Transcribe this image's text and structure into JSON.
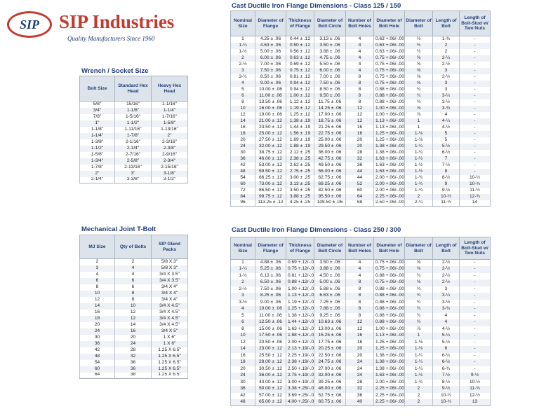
{
  "logo": {
    "mark": "SIP",
    "name": "SIP Industries",
    "tagline": "Quality Manufacturers Since 1960"
  },
  "wrench": {
    "title": "Wrench / Socket Size",
    "headers": [
      "Bolt Size",
      "Standard Hex Head",
      "Heavy Hex Head"
    ],
    "rows": [
      [
        "5/8\"",
        "15/16\"",
        "1-1/16\""
      ],
      [
        "3/4\"",
        "1-1/8\"",
        "1-1/4\""
      ],
      [
        "7/8\"",
        "1-5/16\"",
        "1-7/16\""
      ],
      [
        "1\"",
        "1-1/2\"",
        "1-5/8\""
      ],
      [
        "1-1/8\"",
        "1-11/16\"",
        "1-13/16\""
      ],
      [
        "1-1/4\"",
        "1-7/8\"",
        "2\""
      ],
      [
        "1-3/8\"",
        "2-1/16\"",
        "2-3/16\""
      ],
      [
        "1-1/2\"",
        "2-1/4\"",
        "2-3/8\""
      ],
      [
        "1-5/8\"",
        "2-7/16\"",
        "2-9/16\""
      ],
      [
        "1-3/4\"",
        "2-5/8\"",
        "2-3/4\""
      ],
      [
        "1-7/8\"",
        "2-13/16\"",
        "2-15/16\""
      ],
      [
        "2\"",
        "3\"",
        "3-1/8\""
      ],
      [
        "2-1/4\"",
        "3-3/8\"",
        "3-1/2\""
      ]
    ]
  },
  "mj": {
    "title": "Mechanical Joint T-Bolt",
    "headers": [
      "MJ Size",
      "Qty of Bolts",
      "SIP Gland Packs"
    ],
    "rows": [
      [
        "2",
        "2",
        "5/8 X 3\""
      ],
      [
        "3",
        "4",
        "5/8 X 3\""
      ],
      [
        "4",
        "4",
        "3/4 X 3.5\""
      ],
      [
        "6",
        "6",
        "3/4 X 3.5\""
      ],
      [
        "8",
        "6",
        "3/4 X 4\""
      ],
      [
        "10",
        "8",
        "3/4 X 4\""
      ],
      [
        "12",
        "8",
        "3/4 X 4\""
      ],
      [
        "14",
        "10",
        "3/4 X 4.5\""
      ],
      [
        "16",
        "12",
        "3/4 X 4.5\""
      ],
      [
        "18",
        "12",
        "3/4 X 4.5\""
      ],
      [
        "20",
        "14",
        "3/4 X 4.5\""
      ],
      [
        "24",
        "16",
        "3/4 X 5\""
      ],
      [
        "30",
        "20",
        "1 X 6\""
      ],
      [
        "36",
        "24",
        "1 X 6\""
      ],
      [
        "42",
        "28",
        "1.25 X 6.5\""
      ],
      [
        "48",
        "32",
        "1.25 X 6.5\""
      ],
      [
        "54",
        "36",
        "1.25 X 6.5\""
      ],
      [
        "60",
        "36",
        "1.25 X 6.5\""
      ],
      [
        "64",
        "38",
        "1.25 X 6.5\""
      ]
    ]
  },
  "class125": {
    "title": "Cast Ductile Iron Flange Dimensions - Class 125 / 150",
    "headers": [
      "Nominal Size",
      "Diameter of Flange",
      "Thickness of Flange",
      "Diameter of Bolt Circle",
      "Number of Bolt Holes",
      "Diameter of Bolt Hole",
      "Diameter of Bolt",
      "Length of Bolt",
      "Length of Bolt-Stud w/ Two Nuts"
    ],
    "rows": [
      [
        "1",
        "4.25 ± .06",
        "0.44 ± .12",
        "3.13 ± .06",
        "4",
        "0.63 +.06/-.00",
        "½",
        "1-¾",
        "-"
      ],
      [
        "1-¼",
        "4.63 ± .06",
        "0.50 ± .12",
        "3.50 ± .06",
        "4",
        "0.63 +.06/-.00",
        "½",
        "2",
        "-"
      ],
      [
        "1-½",
        "5.00 ± .06",
        "0.56 ± .12",
        "3.88 ± .06",
        "4",
        "0.63 +.06/-.00",
        "½",
        "2",
        "-"
      ],
      [
        "2",
        "6.00 ± .06",
        "0.63 ± .12",
        "4.75 ± .06",
        "4",
        "0.75 +.06/-.00",
        "⅝",
        "2-¼",
        "-"
      ],
      [
        "2-½",
        "7.00 ± .06",
        "0.69 ± .12",
        "5.50 ± .06",
        "4",
        "0.75 +.06/-.00",
        "⅝",
        "2-½",
        "-"
      ],
      [
        "3",
        "7.50 ± .06",
        "0.75 ± .12",
        "6.00 ± .06",
        "4",
        "0.75 +.06/-.00",
        "⅝",
        "3",
        "-"
      ],
      [
        "3-½",
        "8.50 ± .06",
        "0.81 ± .12",
        "7.00 ± .06",
        "8",
        "0.75 +.06/-.00",
        "⅝",
        "2-½",
        "-"
      ],
      [
        "4",
        "9.00 ± .06",
        "0.94 ± .12",
        "7.50 ± .06",
        "8",
        "0.75 +.06/-.00",
        "⅝",
        "3",
        "-"
      ],
      [
        "5",
        "10.00 ± .06",
        "0.94 ± .12",
        "8.50 ± .06",
        "8",
        "0.88 +.06/-.00",
        "¾",
        "3",
        "-"
      ],
      [
        "6",
        "11.00 ± .06",
        "1.00 ± .12",
        "9.50 ± .06",
        "8",
        "0.88 +.06/-.00",
        "¾",
        "3-¼",
        "-"
      ],
      [
        "8",
        "13.50 ± .06",
        "1.12 ± .12",
        "11.75 ± .06",
        "8",
        "0.88 +.06/-.00",
        "¾",
        "3-½",
        "-"
      ],
      [
        "10",
        "16.00 ± .06",
        "1.19 ± .12",
        "14.25 ± .06",
        "12",
        "1.00 +.06/-.00",
        "⅞",
        "3-¾",
        "-"
      ],
      [
        "12",
        "19.00 ± .06",
        "1.25 ± .12",
        "17.00 ± .06",
        "12",
        "1.00 +.06/-.00",
        "⅞",
        "4",
        "-"
      ],
      [
        "14",
        "21.00 ± .12",
        "1.38 ± .19",
        "18.75 ± .06",
        "12",
        "1.13 +.06/-.00",
        "1",
        "4-¼",
        "-"
      ],
      [
        "16",
        "23.50 ± .12",
        "1.44 ± .19",
        "21.25 ± .06",
        "16",
        "1.13 +.06/-.00",
        "1",
        "4-½",
        "-"
      ],
      [
        "18",
        "25.00 ± .12",
        "1.56 ± .19",
        "22.75 ± .06",
        "16",
        "1.25 +.06/-.00",
        "1-⅛",
        "5",
        "-"
      ],
      [
        "20",
        "27.50 ± .12",
        "1.69 ± .19",
        "25.00 ± .06",
        "20",
        "1.25 +.06/-.00",
        "1-⅛",
        "5",
        "-"
      ],
      [
        "24",
        "32.00 ± .12",
        "1.88 ± .19",
        "29.50 ± .06",
        "20",
        "1.38 +.06/-.00",
        "1-¼",
        "5-½",
        "-"
      ],
      [
        "30",
        "38.75 ± .12",
        "2.12 ± .25",
        "36.00 ± .06",
        "28",
        "1.38 +.06/-.00",
        "1-¼",
        "6-½",
        "-"
      ],
      [
        "36",
        "46.00 ± .12",
        "2.38 ± .25",
        "42.75 ± .06",
        "32",
        "1.63 +.06/-.00",
        "1-½",
        "7",
        "-"
      ],
      [
        "42",
        "53.00 ± .12",
        "2.62 ± .25",
        "49.50 ± .06",
        "36",
        "1.63 +.06/-.00",
        "1-½",
        "7-½",
        "-"
      ],
      [
        "48",
        "59.50 ± .12",
        "2.75 ± .25",
        "56.00 ± .06",
        "44",
        "1.63 +.06/-.00",
        "1-½",
        "8",
        "-"
      ],
      [
        "54",
        "66.25 ± .12",
        "3.00 ± .25",
        "62.75 ± .06",
        "44",
        "2.00 +.06/-.00",
        "1-¾",
        "8-½",
        "10-½"
      ],
      [
        "60",
        "73.00 ± .12",
        "3.13 ± .25",
        "69.25 ± .06",
        "52",
        "2.00 +.06/-.00",
        "1-¾",
        "9",
        "10-¾"
      ],
      [
        "72",
        "86.50 ± .12",
        "3.50 ± .25",
        "82.50 ± .06",
        "60",
        "2.00 +.06/-.00",
        "1-¾",
        "9-½",
        "11-½"
      ],
      [
        "84",
        "99.75 ± .12",
        "3.88 ± .25",
        "95.50 ± .06",
        "64",
        "2.25 +.06/-.00",
        "2",
        "10-½",
        "12-¾"
      ],
      [
        "96",
        "113.25 ± .12",
        "4.25 ± .25",
        "108.50 ± .06",
        "68",
        "2.50 +.06/-.00",
        "2-¼",
        "11-½",
        "14"
      ]
    ]
  },
  "class250": {
    "title": "Cast Ductile Iron Flange Dimensions - Class 250 / 300",
    "headers": [
      "Nominal Size",
      "Diameter of Flange",
      "Thickness of Flange",
      "Diameter of Bolt Circle",
      "Number of Bolt Holes",
      "Diameter of Bolt Hole",
      "Diameter of Bolt",
      "Length of Bolt",
      "Length of Bolt-Stud w/ Two Nuts"
    ],
    "rows": [
      [
        "1",
        "4.88 ± .06",
        "0.69 +.12/-.00",
        "3.50 ± .06",
        "4",
        "0.75 +.06/-.00",
        "⅝",
        "2-½",
        "-"
      ],
      [
        "1-¼",
        "5.25 ± .06",
        "0.75 +.12/-.00",
        "3.88 ± .06",
        "4",
        "0.75 +.06/-.00",
        "⅝",
        "2-½",
        "-"
      ],
      [
        "1-½",
        "6.13 ± .06",
        "0.81 +.12/-.00",
        "4.50 ± .06",
        "4",
        "0.88 +.06/-.00",
        "¾",
        "2-½",
        "-"
      ],
      [
        "2",
        "6.50 ± .06",
        "0.88 +.12/-.00",
        "5.00 ± .06",
        "8",
        "0.75 +.06/-.00",
        "⅝",
        "2-½",
        "-"
      ],
      [
        "2-½",
        "7.50 ± .06",
        "1.00 +.12/-.00",
        "5.88 ± .06",
        "8",
        "0.88 +.06/-.00",
        "¾",
        "3",
        "-"
      ],
      [
        "3",
        "8.25 ± .06",
        "1.13 +.12/-.00",
        "6.63 ± .06",
        "8",
        "0.88 +.06/-.00",
        "¾",
        "3-¼",
        "-"
      ],
      [
        "3-½",
        "9.00 ± .06",
        "1.19 +.12/-.00",
        "7.25 ± .06",
        "8",
        "0.88 +.06/-.00",
        "¾",
        "3-½",
        "-"
      ],
      [
        "4",
        "10.00 ± .06",
        "1.25 +.12/-.00",
        "7.88 ± .06",
        "8",
        "0.88 +.06/-.00",
        "¾",
        "3-¾",
        "-"
      ],
      [
        "5",
        "11.00 ± .06",
        "1.38 +.12/-.00",
        "9.25 ± .06",
        "8",
        "0.88 +.06/-.00",
        "¾",
        "4",
        "-"
      ],
      [
        "6",
        "12.50 ± .06",
        "1.44 +.12/-.00",
        "10.63 ± .06",
        "12",
        "0.88 +.06/-.00",
        "¾",
        "4",
        "-"
      ],
      [
        "8",
        "15.00 ± .06",
        "1.63 +.12/-.00",
        "13.00 ± .06",
        "12",
        "1.00 +.06/-.00",
        "⅞",
        "4-½",
        "-"
      ],
      [
        "10",
        "17.50 ± .06",
        "1.88 +.12/-.00",
        "15.25 ± .06",
        "16",
        "1.13 +.06/-.00",
        "1",
        "5-¼",
        "-"
      ],
      [
        "12",
        "20.50 ± .06",
        "2.00 +.12/-.00",
        "17.75 ± .06",
        "16",
        "1.25 +.06/-.00",
        "1-⅛",
        "5-½",
        "-"
      ],
      [
        "14",
        "23.00 ± .12",
        "2.13 +.19/-.00",
        "20.25 ± .06",
        "20",
        "1.25 +.06/-.00",
        "1-⅛",
        "6",
        "-"
      ],
      [
        "16",
        "25.50 ± .12",
        "2.25 +.19/-.00",
        "22.50 ± .06",
        "20",
        "1.38 +.06/-.00",
        "1-¼",
        "6-¼",
        "-"
      ],
      [
        "18",
        "28.00 ± .12",
        "2.38 +.19/-.00",
        "24.75 ± .06",
        "24",
        "1.38 +.06/-.00",
        "1-¼",
        "6-½",
        "-"
      ],
      [
        "20",
        "30.50 ± .12",
        "2.50 +.19/-.00",
        "27.00 ± .06",
        "24",
        "1.38 +.06/-.00",
        "1-¼",
        "6-¾",
        "-"
      ],
      [
        "24",
        "36.00 ± .12",
        "2.75 +.19/-.00",
        "32.00 ± .06",
        "24",
        "1.63 +.06/-.00",
        "1-½",
        "7-½",
        "9-½"
      ],
      [
        "30",
        "43.00 ± .12",
        "3.00 +.19/-.00",
        "39.25 ± .06",
        "28",
        "2.00 +.06/-.00",
        "1-¾",
        "8-½",
        "10-½"
      ],
      [
        "36",
        "50.00 ± .12",
        "3.38 +.25/-.00",
        "46.00 ± .06",
        "32",
        "2.25 +.06/-.00",
        "2",
        "9-½",
        "11-¾"
      ],
      [
        "42",
        "57.00 ± .12",
        "3.69 +.25/-.00",
        "52.75 ± .06",
        "36",
        "2.25 +.06/-.00",
        "2",
        "10-¼",
        "12-½"
      ],
      [
        "48",
        "65.00 ± .12",
        "4.00 +.25/-.00",
        "60.75 ± .06",
        "40",
        "2.25 +.06/-.00",
        "2",
        "10-¾",
        "13"
      ]
    ]
  }
}
